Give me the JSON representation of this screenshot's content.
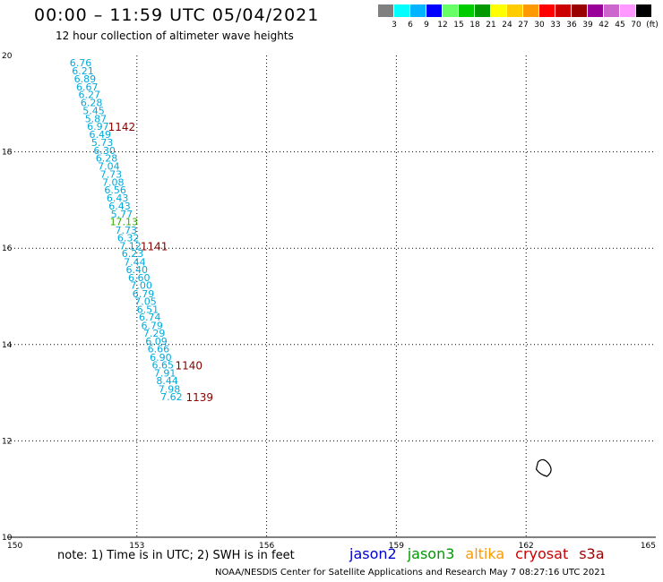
{
  "header": {
    "title": "00:00 – 11:59 UTC 05/04/2021",
    "subtitle": "12 hour collection of altimeter wave heights"
  },
  "color_scale": {
    "colors": [
      "#808080",
      "#00ffff",
      "#00b4ff",
      "#0000ff",
      "#66ff66",
      "#00cc00",
      "#009900",
      "#ffff00",
      "#ffcc00",
      "#ff9900",
      "#ff0000",
      "#cc0000",
      "#990000",
      "#990099",
      "#cc66cc",
      "#ff99ff",
      "#000000"
    ],
    "labels": [
      "3",
      "6",
      "9",
      "12",
      "15",
      "18",
      "21",
      "24",
      "27",
      "30",
      "33",
      "36",
      "39",
      "42",
      "45",
      "70",
      "(ft)"
    ]
  },
  "chart_data": {
    "type": "scatter",
    "title": "00:00 – 11:59 UTC 05/04/2021",
    "xlim": [
      150,
      165
    ],
    "ylim": [
      10,
      20
    ],
    "x_ticks": [
      "150",
      "153",
      "156",
      "159",
      "162",
      "165"
    ],
    "y_ticks": [
      "10",
      "12",
      "14",
      "16",
      "18",
      "20"
    ],
    "grid": true,
    "series": [
      {
        "name": "jason3",
        "color": "#00aadd",
        "points": [
          {
            "x": 151.7,
            "y": 19.85,
            "label": "6.76"
          },
          {
            "x": 151.75,
            "y": 19.68,
            "label": "6.21"
          },
          {
            "x": 151.8,
            "y": 19.52,
            "label": "6.89"
          },
          {
            "x": 151.85,
            "y": 19.35,
            "label": "6.67"
          },
          {
            "x": 151.9,
            "y": 19.19,
            "label": "6.27"
          },
          {
            "x": 151.95,
            "y": 19.02,
            "label": "6.28"
          },
          {
            "x": 152.0,
            "y": 18.86,
            "label": "5.45"
          },
          {
            "x": 152.05,
            "y": 18.69,
            "label": "5.87"
          },
          {
            "x": 152.1,
            "y": 18.53,
            "label": "6.97"
          },
          {
            "x": 152.15,
            "y": 18.36,
            "label": "6.49"
          },
          {
            "x": 152.2,
            "y": 18.2,
            "label": "5.73"
          },
          {
            "x": 152.25,
            "y": 18.03,
            "label": "6.30"
          },
          {
            "x": 152.3,
            "y": 17.87,
            "label": "6.28"
          },
          {
            "x": 152.35,
            "y": 17.7,
            "label": "7.04"
          },
          {
            "x": 152.4,
            "y": 17.54,
            "label": "7.73"
          },
          {
            "x": 152.45,
            "y": 17.37,
            "label": "7.08"
          },
          {
            "x": 152.5,
            "y": 17.21,
            "label": "6.56"
          },
          {
            "x": 152.55,
            "y": 17.04,
            "label": "6.43"
          },
          {
            "x": 152.6,
            "y": 16.88,
            "label": "6.43"
          },
          {
            "x": 152.65,
            "y": 16.71,
            "label": "5.77"
          },
          {
            "x": 152.75,
            "y": 16.38,
            "label": "7.73"
          },
          {
            "x": 152.8,
            "y": 16.22,
            "label": "6.32"
          },
          {
            "x": 152.85,
            "y": 16.05,
            "label": "7.12"
          },
          {
            "x": 152.9,
            "y": 15.89,
            "label": "6.23"
          },
          {
            "x": 152.95,
            "y": 15.72,
            "label": "7.44"
          },
          {
            "x": 153.0,
            "y": 15.56,
            "label": "6.40"
          },
          {
            "x": 153.05,
            "y": 15.39,
            "label": "6.60"
          },
          {
            "x": 153.1,
            "y": 15.23,
            "label": "7.00"
          },
          {
            "x": 153.15,
            "y": 15.06,
            "label": "6.79"
          },
          {
            "x": 153.2,
            "y": 14.9,
            "label": "7.05"
          },
          {
            "x": 153.25,
            "y": 14.73,
            "label": "6.51"
          },
          {
            "x": 153.3,
            "y": 14.57,
            "label": "6.74"
          },
          {
            "x": 153.35,
            "y": 14.4,
            "label": "6.79"
          },
          {
            "x": 153.4,
            "y": 14.24,
            "label": "7.29"
          },
          {
            "x": 153.45,
            "y": 14.07,
            "label": "6.09"
          },
          {
            "x": 153.5,
            "y": 13.91,
            "label": "6.66"
          },
          {
            "x": 153.55,
            "y": 13.74,
            "label": "6.90"
          },
          {
            "x": 153.6,
            "y": 13.58,
            "label": "6.65"
          },
          {
            "x": 153.65,
            "y": 13.41,
            "label": "7.91"
          },
          {
            "x": 153.7,
            "y": 13.25,
            "label": "8.44"
          },
          {
            "x": 153.75,
            "y": 13.08,
            "label": "7.98"
          },
          {
            "x": 153.8,
            "y": 12.92,
            "label": "7.62"
          }
        ]
      },
      {
        "name": "jason3",
        "color": "#33aa00",
        "points": [
          {
            "x": 152.7,
            "y": 16.55,
            "label": "17.13"
          }
        ]
      }
    ],
    "annotations": [
      {
        "x": 152.65,
        "y": 18.53,
        "label": "1142",
        "color": "#880000"
      },
      {
        "x": 153.4,
        "y": 16.05,
        "label": "1141",
        "color": "#880000"
      },
      {
        "x": 154.2,
        "y": 13.58,
        "label": "1140",
        "color": "#880000"
      },
      {
        "x": 154.45,
        "y": 12.92,
        "label": "1139",
        "color": "#880000"
      }
    ]
  },
  "note": "note:  1) Time is in UTC;  2) SWH is in feet",
  "missions": [
    {
      "name": "jason2",
      "color": "#0000cc"
    },
    {
      "name": "jason3",
      "color": "#009900"
    },
    {
      "name": "altika",
      "color": "#ff9900"
    },
    {
      "name": "cryosat",
      "color": "#cc0000"
    },
    {
      "name": "s3a",
      "color": "#990000"
    }
  ],
  "footer": "NOAA/NESDIS Center for Satellite Applications and Research    May  7 08:27:16 UTC 2021"
}
